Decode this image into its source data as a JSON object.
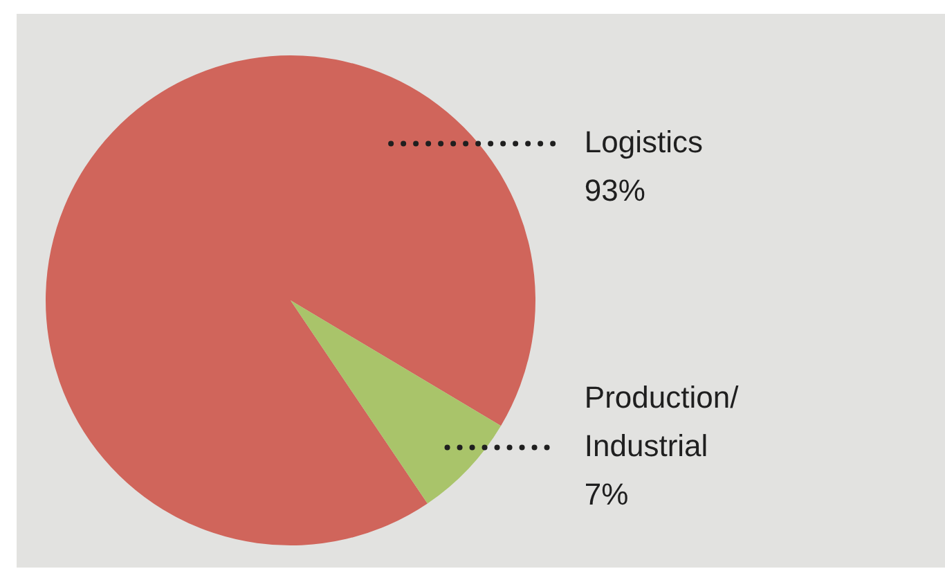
{
  "chart_data": {
    "type": "pie",
    "categories": [
      "Logistics",
      "Production/Industrial"
    ],
    "values": [
      93,
      7
    ],
    "colors": [
      "#d0655b",
      "#a9c46a"
    ],
    "value_labels": [
      "93%",
      "7%"
    ],
    "legend": false
  }
}
